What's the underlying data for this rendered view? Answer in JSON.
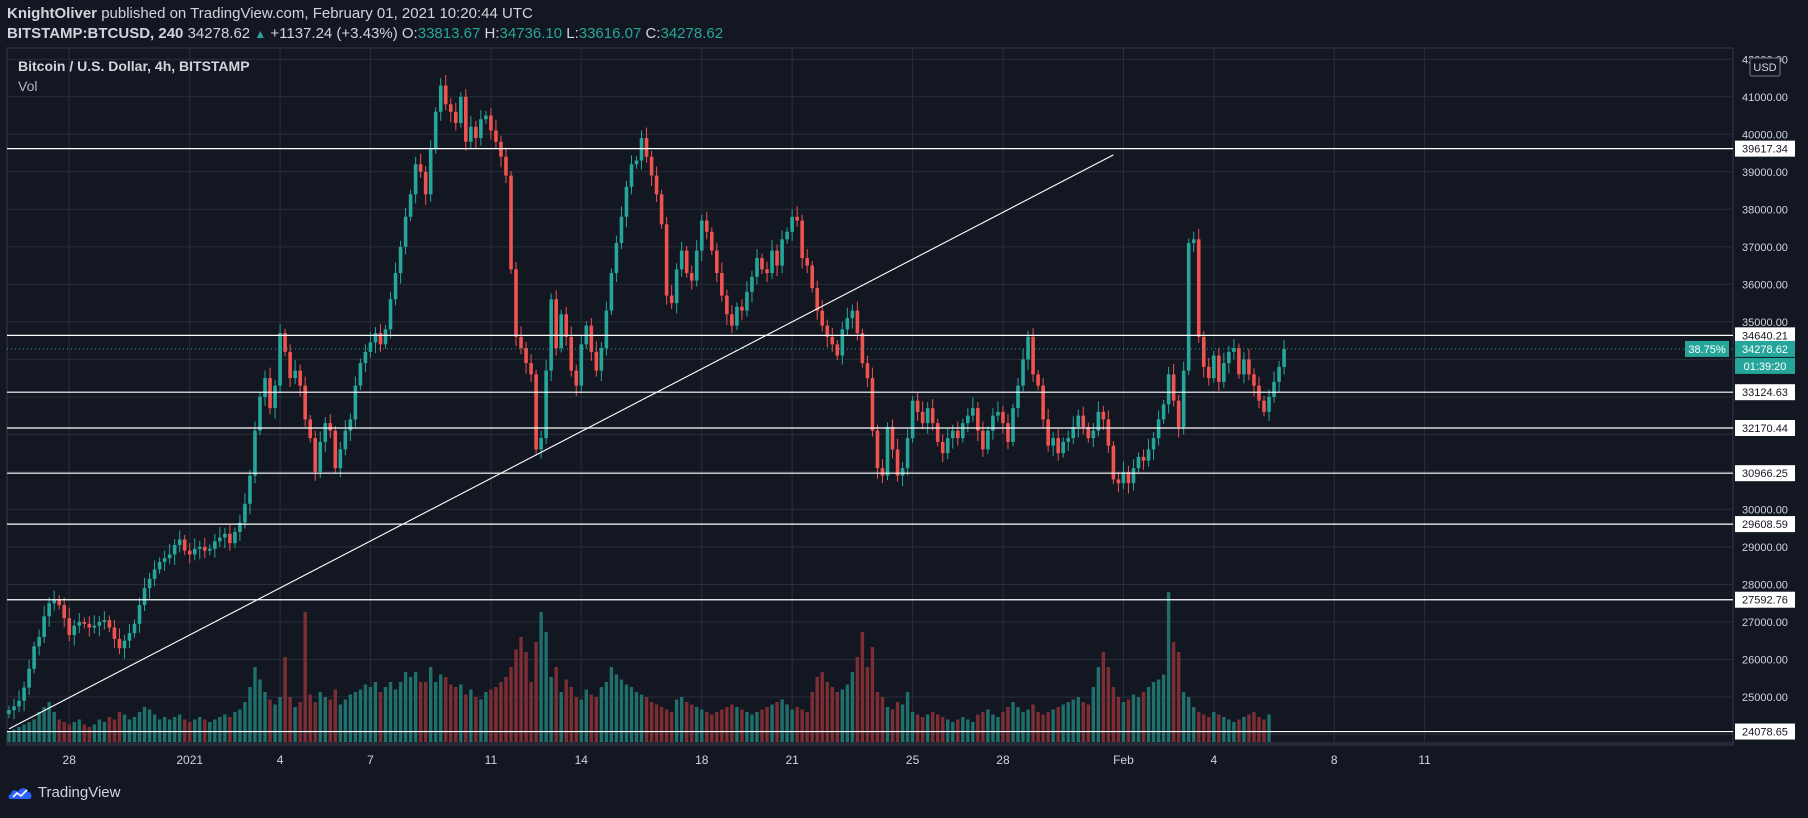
{
  "header": {
    "author": "KnightOliver",
    "published_text": "published on TradingView.com, February 01, 2021 10:20:44 UTC",
    "symbol": "BITSTAMP:BTCUSD, 240",
    "last": "34278.62",
    "change": "+1137.24 (+3.43%)",
    "o_label": "O:",
    "o_value": "33813.67",
    "h_label": "H:",
    "h_value": "34736.10",
    "l_label": "L:",
    "l_value": "33616.07",
    "c_label": "C:",
    "c_value": "34278.62"
  },
  "legend": {
    "title": "Bitcoin / U.S. Dollar, 4h, BITSTAMP",
    "vol_label": "Vol"
  },
  "currency_badge": "USD",
  "price_badges": {
    "percent": "38.75%",
    "price": "34278.62",
    "countdown": "01:39:20"
  },
  "brand": "TradingView",
  "colors": {
    "bg": "#131722",
    "up": "#26a69a",
    "down": "#ef5350",
    "grid": "#2a2e39",
    "text": "#d1d4dc"
  },
  "chart_data": {
    "type": "candlestick",
    "title": "Bitcoin / U.S. Dollar, 4h, BITSTAMP",
    "ylim": [
      23800,
      42300
    ],
    "y_ticks": [
      "42000.00",
      "41000.00",
      "40000.00",
      "39000.00",
      "38000.00",
      "37000.00",
      "36000.00",
      "35000.00",
      "30000.00",
      "29000.00",
      "28000.00",
      "27000.00",
      "26000.00",
      "25000.00"
    ],
    "x_ticks": [
      {
        "label": "28",
        "t": 12
      },
      {
        "label": "2021",
        "t": 36
      },
      {
        "label": "4",
        "t": 54
      },
      {
        "label": "7",
        "t": 72
      },
      {
        "label": "11",
        "t": 96
      },
      {
        "label": "14",
        "t": 114
      },
      {
        "label": "18",
        "t": 138
      },
      {
        "label": "21",
        "t": 156
      },
      {
        "label": "25",
        "t": 180
      },
      {
        "label": "28",
        "t": 198
      },
      {
        "label": "Feb",
        "t": 222
      },
      {
        "label": "4",
        "t": 240
      },
      {
        "label": "8",
        "t": 264
      },
      {
        "label": "11",
        "t": 282
      }
    ],
    "horizontal_levels": [
      "39617.34",
      "34640.21",
      "33124.63",
      "32170.44",
      "30966.25",
      "29608.59",
      "27592.76",
      "24078.65"
    ],
    "trendline": [
      {
        "t": 0,
        "price": 24150
      },
      {
        "t": 220,
        "price": 39450
      }
    ],
    "closes": [
      24650,
      24750,
      24900,
      25250,
      25750,
      26350,
      26600,
      27150,
      27500,
      27600,
      27450,
      27100,
      26650,
      26900,
      27000,
      26950,
      26850,
      26900,
      27000,
      27050,
      26850,
      26550,
      26300,
      26500,
      26700,
      26950,
      27450,
      27900,
      28150,
      28400,
      28600,
      28700,
      28800,
      29050,
      29200,
      28900,
      28800,
      28950,
      29000,
      28900,
      28950,
      29150,
      29250,
      29350,
      29100,
      29400,
      29650,
      30150,
      30900,
      32100,
      33000,
      33500,
      32700,
      33300,
      34700,
      34200,
      33500,
      33700,
      33300,
      32400,
      31900,
      31000,
      31800,
      32300,
      32100,
      31100,
      31600,
      32100,
      32400,
      33300,
      33900,
      34200,
      34450,
      34700,
      34400,
      34800,
      35600,
      36300,
      37000,
      37800,
      38400,
      39200,
      39000,
      38400,
      39600,
      40600,
      41300,
      40800,
      40600,
      40300,
      41000,
      39800,
      40200,
      39900,
      40400,
      40500,
      40100,
      39800,
      39400,
      38900,
      36400,
      34600,
      34300,
      33900,
      33600,
      31600,
      31900,
      33700,
      35600,
      34300,
      35200,
      34600,
      33700,
      33300,
      34400,
      34900,
      34200,
      33700,
      34300,
      35300,
      36300,
      37100,
      37800,
      38600,
      39200,
      39300,
      39900,
      39400,
      38900,
      38400,
      37600,
      35700,
      35500,
      36400,
      36900,
      36300,
      36100,
      36900,
      37700,
      37400,
      36900,
      36300,
      35700,
      35200,
      34900,
      35400,
      35300,
      35800,
      36200,
      36700,
      36400,
      36300,
      36900,
      36500,
      37200,
      37400,
      37800,
      37700,
      36700,
      36500,
      35900,
      35300,
      34900,
      34600,
      34400,
      34100,
      34800,
      35100,
      35300,
      34700,
      33900,
      33500,
      32100,
      31100,
      30900,
      32200,
      31600,
      30900,
      31100,
      31900,
      32900,
      32600,
      32300,
      32700,
      32300,
      31800,
      31500,
      31900,
      32100,
      31900,
      32300,
      32500,
      32700,
      32100,
      31600,
      32100,
      32500,
      32600,
      32300,
      31800,
      32700,
      33300,
      34000,
      34600,
      33600,
      33300,
      32400,
      31700,
      31900,
      31500,
      31800,
      31900,
      32200,
      32500,
      32200,
      31900,
      32100,
      32600,
      32400,
      31700,
      30800,
      30700,
      31000,
      30700,
      31100,
      31400,
      31300,
      31600,
      31900,
      32400,
      32800,
      33600,
      32900,
      32200,
      33700,
      37100,
      37200,
      34600,
      33800,
      33500,
      34100,
      33400,
      33900,
      34200,
      34300,
      33600,
      34000,
      33600,
      33300,
      32900,
      32600,
      33000,
      33400,
      33800,
      34278.62
    ],
    "volumes": [
      4,
      5,
      6,
      7,
      8,
      9,
      12,
      14,
      16,
      12,
      9,
      8,
      7,
      8,
      9,
      7,
      6,
      7,
      9,
      8,
      10,
      9,
      12,
      11,
      9,
      10,
      12,
      14,
      13,
      11,
      9,
      10,
      9,
      10,
      11,
      9,
      8,
      9,
      10,
      9,
      8,
      9,
      10,
      11,
      10,
      12,
      13,
      16,
      22,
      30,
      25,
      20,
      17,
      15,
      18,
      34,
      18,
      14,
      16,
      52,
      19,
      16,
      20,
      18,
      17,
      21,
      15,
      17,
      19,
      20,
      21,
      23,
      22,
      24,
      20,
      22,
      24,
      21,
      24,
      28,
      26,
      28,
      24,
      24,
      30,
      24,
      27,
      26,
      23,
      22,
      23,
      19,
      21,
      18,
      17,
      20,
      21,
      22,
      24,
      26,
      30,
      37,
      42,
      36,
      24,
      40,
      52,
      44,
      26,
      30,
      20,
      25,
      22,
      18,
      17,
      21,
      19,
      18,
      22,
      24,
      30,
      27,
      25,
      23,
      22,
      20,
      19,
      18,
      16,
      15,
      14,
      13,
      12,
      17,
      18,
      16,
      15,
      14,
      13,
      12,
      11,
      12,
      13,
      14,
      15,
      14,
      13,
      12,
      11,
      12,
      13,
      14,
      15,
      16,
      17,
      15,
      13,
      14,
      13,
      12,
      20,
      26,
      28,
      24,
      22,
      20,
      21,
      23,
      28,
      34,
      44,
      30,
      38,
      20,
      18,
      14,
      13,
      16,
      15,
      20,
      12,
      11,
      10,
      11,
      12,
      11,
      10,
      9,
      8,
      9,
      10,
      9,
      8,
      11,
      12,
      13,
      11,
      10,
      12,
      14,
      16,
      14,
      12,
      13,
      15,
      12,
      11,
      12,
      13,
      14,
      15,
      16,
      17,
      18,
      16,
      15,
      22,
      30,
      36,
      30,
      22,
      18,
      16,
      17,
      19,
      18,
      20,
      22,
      24,
      25,
      27,
      60,
      40,
      36,
      20,
      18,
      14,
      12,
      11,
      10,
      12,
      11,
      10,
      9,
      8,
      9,
      10,
      11,
      12,
      10,
      9,
      11
    ]
  }
}
